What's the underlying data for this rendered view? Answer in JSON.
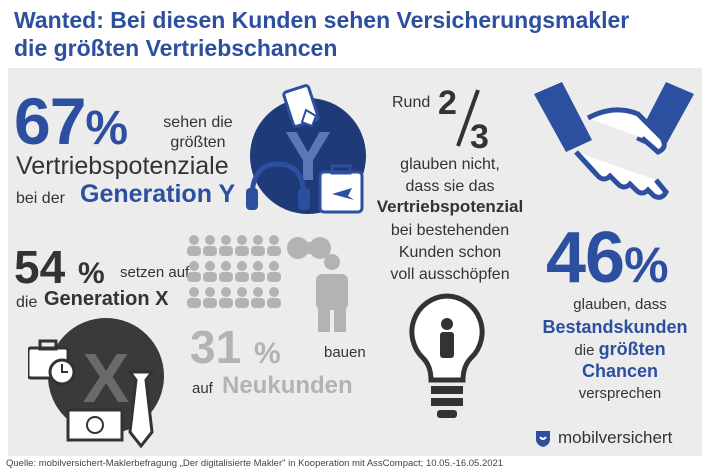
{
  "title_line1": "Wanted: Bei diesen Kunden sehen Versicherungsmakler",
  "title_line2": "die größten Vertriebschancen",
  "chart_data": {
    "type": "infographic",
    "stats": [
      {
        "value": 67,
        "unit": "%",
        "text_a": "sehen die",
        "text_b": "größten",
        "text_c": "Vertriebspotenziale",
        "text_d": "bei der",
        "target": "Generation Y"
      },
      {
        "value": 54,
        "unit": "%",
        "text_a": "setzen auf",
        "text_b": "die",
        "target": "Generation X"
      },
      {
        "value": 31,
        "unit": "%",
        "text_a": "bauen",
        "text_b": "auf",
        "target": "Neukunden"
      },
      {
        "value_prefix": "Rund",
        "numerator": "2",
        "denominator": "3",
        "text_a": "glauben nicht,",
        "text_b": "dass sie das",
        "target": "Vertriebspotenzial",
        "text_c": "bei bestehenden",
        "text_d": "Kunden schon",
        "text_e": "voll ausschöpfen"
      },
      {
        "value": 46,
        "unit": "%",
        "text_a": "glauben, dass",
        "target": "Bestandskunden",
        "text_b": "die",
        "target_b": "größten",
        "target_c": "Chancen",
        "text_c": "versprechen"
      }
    ]
  },
  "icon_labels": {
    "gen_y": "Y",
    "gen_x": "X"
  },
  "colors": {
    "blue": "#2d4fa0",
    "dark": "#333333",
    "grey": "#b3b3b3",
    "panel": "#ececec"
  },
  "logo": {
    "name": "mobilversichert"
  },
  "source": "Quelle: mobilversichert-Maklerbefragung „Der digitalisierte Makler\" in Kooperation mit AssCompact; 10.05.-16.05.2021"
}
